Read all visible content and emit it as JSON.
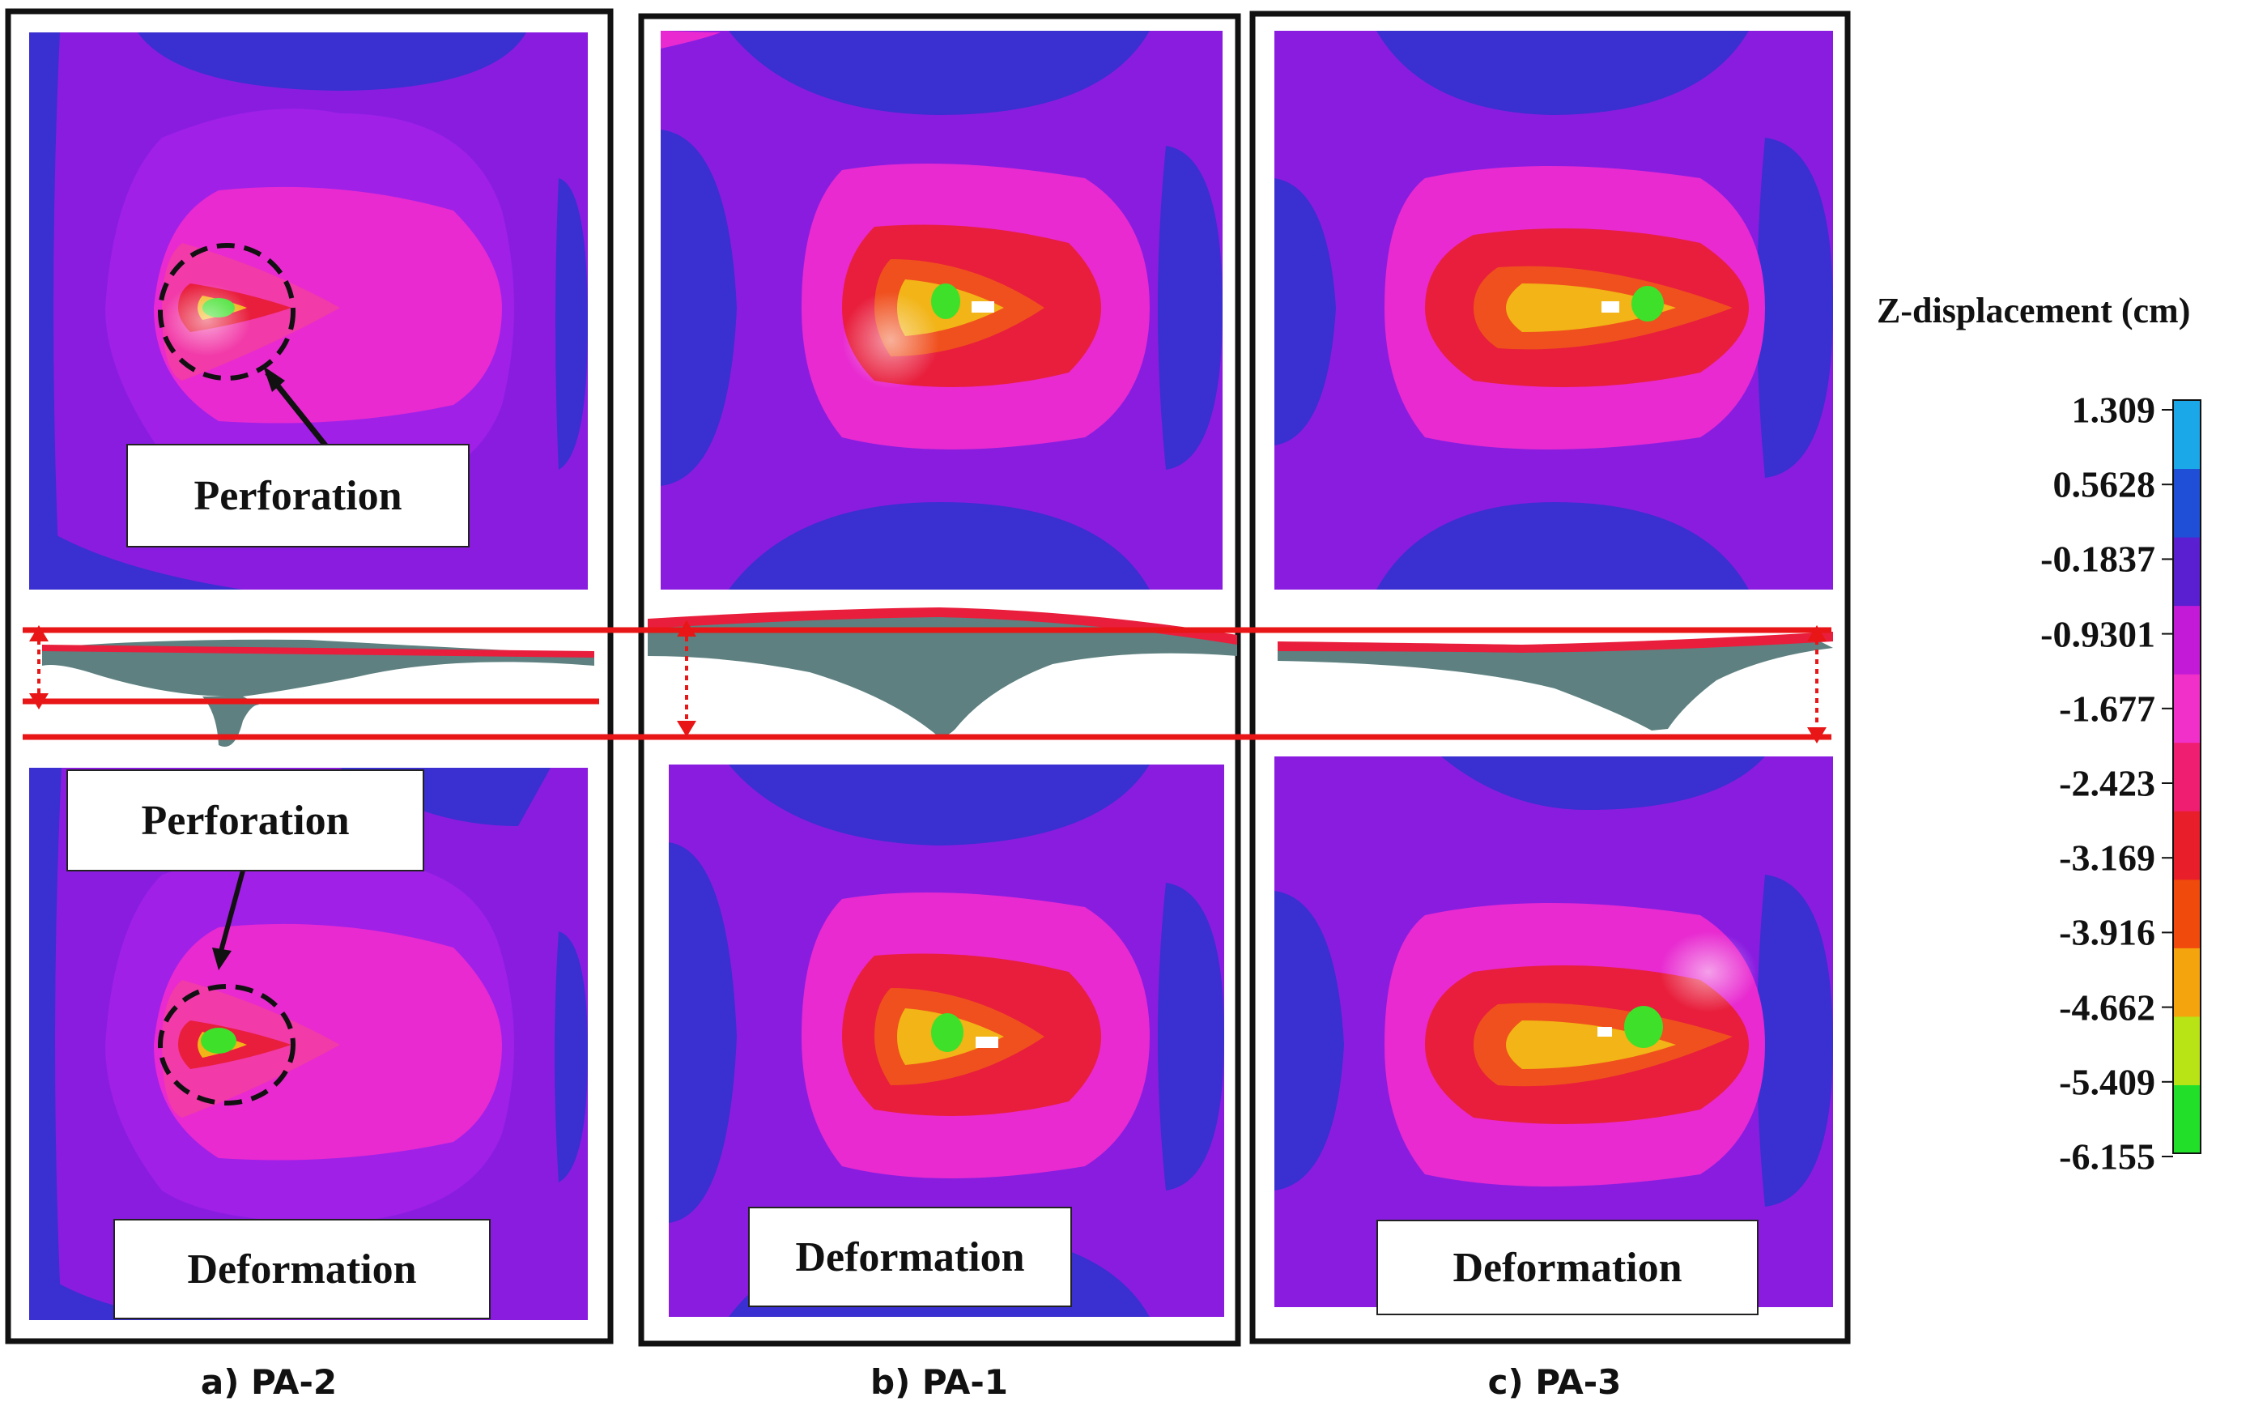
{
  "panels": [
    {
      "caption": "a) PA-2",
      "overlay_label": "Perforation",
      "lower_label": "Perforation",
      "bottom_label": "Deformation"
    },
    {
      "caption": "b) PA-1",
      "bottom_label": "Deformation"
    },
    {
      "caption": "c) PA-3",
      "bottom_label": "Deformation"
    }
  ],
  "color_scale": {
    "title": "Z-displacement (cm)",
    "ticks": [
      "1.309",
      "0.5628",
      "-0.1837",
      "-0.9301",
      "-1.677",
      "-2.423",
      "-3.169",
      "-3.916",
      "-4.662",
      "-5.409",
      "-6.155"
    ],
    "colors": [
      "#1aa8e8",
      "#1f4fd6",
      "#5a1fd0",
      "#c21ad6",
      "#f030c8",
      "#f01e70",
      "#e81e2a",
      "#f04a0c",
      "#f4a40c",
      "#b8e416",
      "#22e02a"
    ]
  },
  "plate_colors": {
    "background": "#8a1ce0",
    "blue": "#3a2fd0",
    "blue_edge": "#1f3fcf",
    "purple_mid": "#a020e8",
    "magenta": "#e82ad0",
    "pink": "#f23aa8",
    "red": "#e81e3c",
    "orange": "#f0501e",
    "yellow": "#f2b416",
    "green": "#3ee02a",
    "section": "#5e8080",
    "guide": "#e81616"
  }
}
